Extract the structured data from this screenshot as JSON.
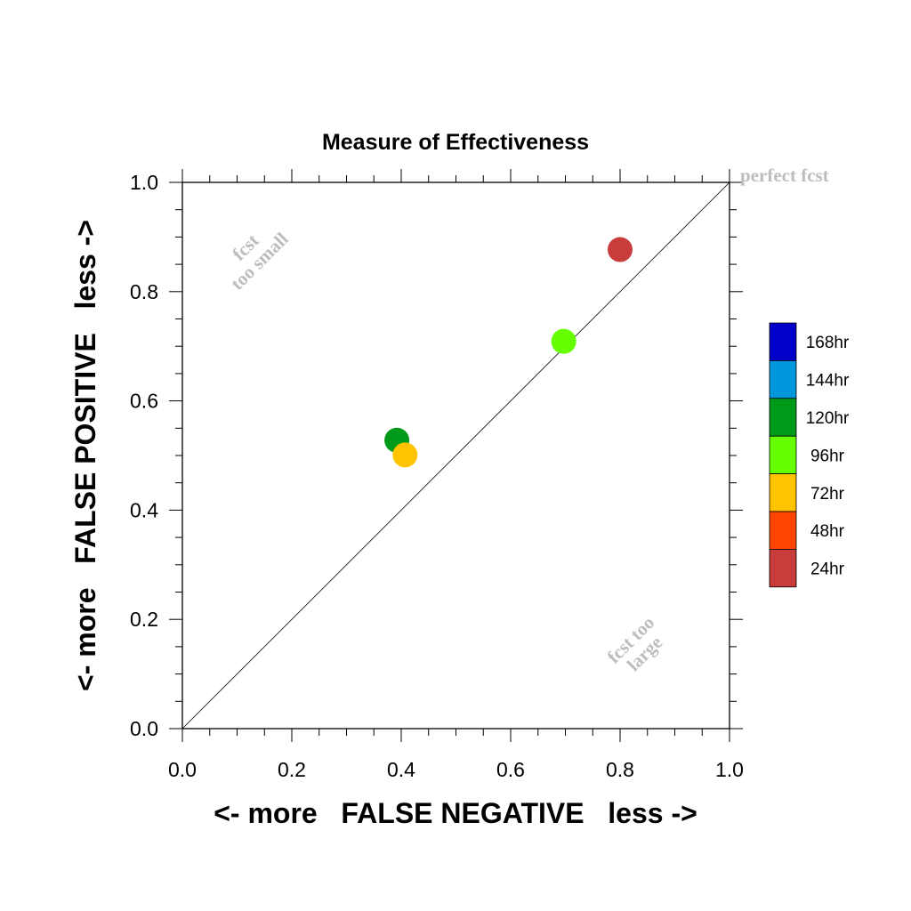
{
  "chart_data": {
    "type": "scatter",
    "title": "Measure of Effectiveness",
    "xlabel": "<- more   FALSE NEGATIVE   less ->",
    "ylabel": "<- more   FALSE POSITIVE   less ->",
    "xlim": [
      0.0,
      1.0
    ],
    "ylim": [
      0.0,
      1.0
    ],
    "x_ticks": [
      "0.0",
      "0.2",
      "0.4",
      "0.6",
      "0.8",
      "1.0"
    ],
    "y_ticks": [
      "0.0",
      "0.2",
      "0.4",
      "0.6",
      "0.8",
      "1.0"
    ],
    "grid": false,
    "diagonal_line": true,
    "points": [
      {
        "x": 0.8,
        "y": 0.877,
        "color": "#c83c3c",
        "category": "24hr"
      },
      {
        "x": 0.697,
        "y": 0.709,
        "color": "#66ff00",
        "category": "96hr"
      },
      {
        "x": 0.392,
        "y": 0.528,
        "color": "#009a1a",
        "category": "120hr"
      },
      {
        "x": 0.407,
        "y": 0.501,
        "color": "#ffc300",
        "category": "72hr"
      }
    ],
    "annotations": {
      "top_right": "perfect fcst",
      "upper_left_line1": "fcst",
      "upper_left_line2": "too small",
      "lower_right_line1": "fcst too",
      "lower_right_line2": "large"
    },
    "legend": {
      "placement": "right",
      "entries": [
        {
          "label": "168hr",
          "color": "#0000c8"
        },
        {
          "label": "144hr",
          "color": "#0096dc"
        },
        {
          "label": "120hr",
          "color": "#009a1a"
        },
        {
          "label": "96hr",
          "color": "#66ff00"
        },
        {
          "label": "72hr",
          "color": "#ffc300"
        },
        {
          "label": "48hr",
          "color": "#ff4600"
        },
        {
          "label": "24hr",
          "color": "#c83c3c"
        }
      ]
    }
  }
}
